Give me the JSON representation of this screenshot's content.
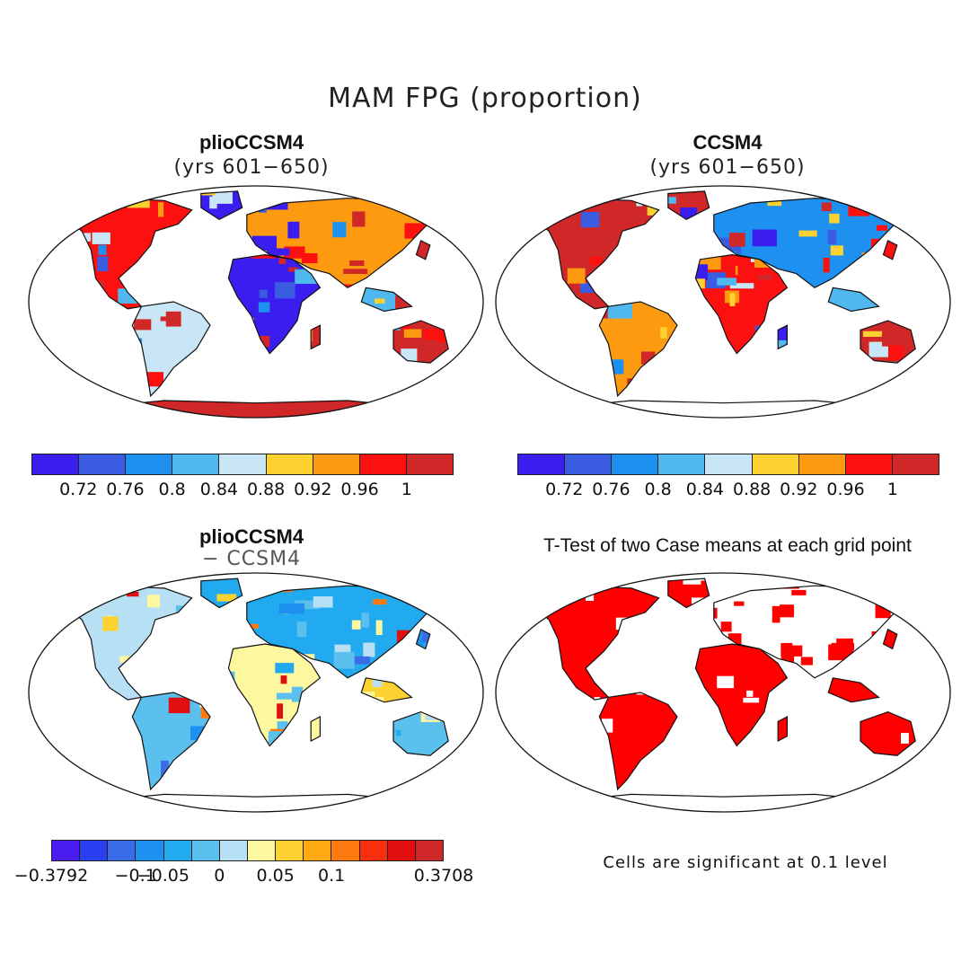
{
  "title": "MAM FPG (proportion)",
  "panels": [
    {
      "title": "plioCCSM4",
      "subtitle": "(yrs 601−650)"
    },
    {
      "title": "CCSM4",
      "subtitle": "(yrs 601−650)"
    },
    {
      "title": "plioCCSM4",
      "subtitle": "− CCSM4"
    },
    {
      "title": "T-Test of two Case means at each grid point",
      "subtitle": ""
    }
  ],
  "colorbar_abs": {
    "colors": [
      "#3a1ef0",
      "#3a5ce0",
      "#1e90f0",
      "#4fb8ee",
      "#c8e6f5",
      "#fdd230",
      "#fd9a10",
      "#fd1010",
      "#d02828"
    ],
    "labels": [
      "0.72",
      "0.76",
      "0.8",
      "0.84",
      "0.88",
      "0.92",
      "0.96",
      "1"
    ]
  },
  "colorbar_diff": {
    "colors": [
      "#4a1ef0",
      "#2a40f0",
      "#3a6ce8",
      "#1e90f0",
      "#22aaf0",
      "#5cc0ee",
      "#b8e0f5",
      "#fdf8a0",
      "#fdd230",
      "#fdaa10",
      "#fd7a10",
      "#f83010",
      "#e01010",
      "#d02828"
    ],
    "labels": [
      "−0.3792",
      "−0.1",
      "−0.05",
      "0",
      "0.05",
      "0.1",
      "0.3708"
    ]
  },
  "significance_color": "#ff0000",
  "note": "Cells are significant at 0.1 level"
}
